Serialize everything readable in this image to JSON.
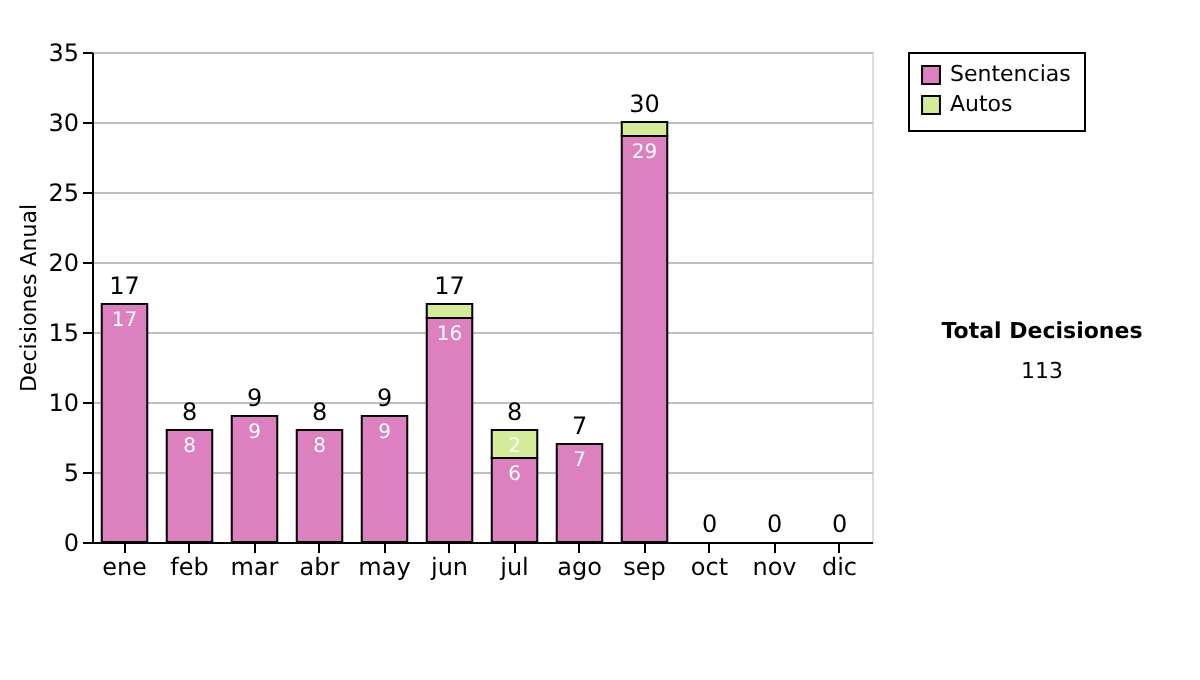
{
  "chart_data": {
    "type": "bar",
    "stacked": true,
    "ylabel": "Decisiones Anual",
    "categories": [
      "ene",
      "feb",
      "mar",
      "abr",
      "may",
      "jun",
      "jul",
      "ago",
      "sep",
      "oct",
      "nov",
      "dic"
    ],
    "series": [
      {
        "name": "Sentencias",
        "color": "#dd80c0",
        "values": [
          17,
          8,
          9,
          8,
          9,
          16,
          6,
          7,
          29,
          0,
          0,
          0
        ],
        "value_labels": [
          "17",
          "8",
          "9",
          "8",
          "9",
          "16",
          "6",
          "7",
          "29",
          null,
          null,
          null
        ]
      },
      {
        "name": "Autos",
        "color": "#d4ec98",
        "values": [
          0,
          0,
          0,
          0,
          0,
          1,
          2,
          0,
          1,
          0,
          0,
          0
        ],
        "value_labels": [
          null,
          null,
          null,
          null,
          null,
          null,
          "2",
          null,
          null,
          null,
          null,
          null
        ]
      }
    ],
    "totals": [
      "17",
      "8",
      "9",
      "8",
      "9",
      "17",
      "8",
      "7",
      "30",
      "0",
      "0",
      "0"
    ],
    "ylim": [
      0,
      35
    ],
    "yticks": [
      0,
      5,
      10,
      15,
      20,
      25,
      30,
      35
    ],
    "grid": "y",
    "legend": "right",
    "annotations": [
      "Total Decisiones",
      "113"
    ]
  }
}
